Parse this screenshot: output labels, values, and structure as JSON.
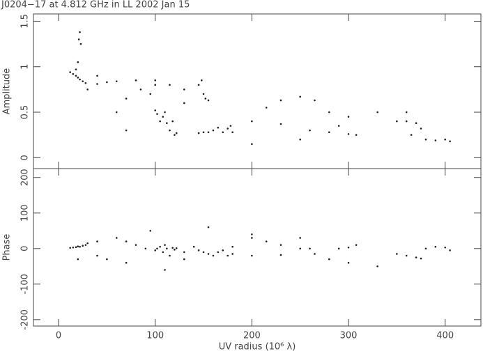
{
  "chart_data": [
    {
      "type": "scatter",
      "title": "J0204−17 at 4.812 GHz in LL  2002 Jan 15",
      "y_label": "Amplitude",
      "color": "#222222",
      "xlim": [
        -26,
        437
      ],
      "ylim": [
        -0.12,
        1.58
      ],
      "yticks": [
        0,
        0.5,
        1,
        1.5
      ],
      "x": [
        12,
        15,
        18,
        20,
        22,
        25,
        28,
        20,
        21,
        22,
        23,
        18,
        30,
        40,
        50,
        60,
        80,
        100,
        60,
        70,
        85,
        100,
        115,
        130,
        100,
        102,
        105,
        108,
        110,
        112,
        115,
        118,
        120,
        122,
        145,
        148,
        150,
        152,
        155,
        145,
        150,
        155,
        160,
        165,
        170,
        175,
        178,
        180,
        200,
        215,
        230,
        250,
        265,
        280,
        290,
        230,
        260,
        280,
        300,
        308,
        350,
        360,
        370,
        375,
        380,
        390,
        400,
        405,
        360,
        365,
        40,
        70,
        130,
        200,
        250,
        300,
        330,
        95
      ],
      "values": [
        0.94,
        0.92,
        0.9,
        0.88,
        0.86,
        0.84,
        0.82,
        1.05,
        1.3,
        1.38,
        1.25,
        0.97,
        0.75,
        0.81,
        0.83,
        0.84,
        0.85,
        0.85,
        0.5,
        0.65,
        0.75,
        0.8,
        0.8,
        0.75,
        0.52,
        0.48,
        0.4,
        0.45,
        0.5,
        0.38,
        0.3,
        0.4,
        0.25,
        0.27,
        0.8,
        0.85,
        0.7,
        0.65,
        0.63,
        0.27,
        0.28,
        0.28,
        0.3,
        0.33,
        0.28,
        0.32,
        0.35,
        0.28,
        0.4,
        0.55,
        0.63,
        0.67,
        0.63,
        0.5,
        0.35,
        0.37,
        0.3,
        0.28,
        0.26,
        0.25,
        0.4,
        0.4,
        0.38,
        0.32,
        0.2,
        0.19,
        0.2,
        0.18,
        0.5,
        0.25,
        0.9,
        0.3,
        0.6,
        0.15,
        0.2,
        0.45,
        0.5,
        0.7
      ]
    },
    {
      "type": "scatter",
      "y_label": "Phase",
      "x_label": "UV radius  (10⁶ λ)",
      "color": "#222222",
      "xlim": [
        -26,
        437
      ],
      "ylim": [
        -218,
        225
      ],
      "yticks": [
        -200,
        -100,
        0,
        100,
        200
      ],
      "xticks": [
        0,
        100,
        200,
        300,
        400
      ],
      "x": [
        12,
        15,
        18,
        20,
        22,
        25,
        28,
        20,
        30,
        40,
        50,
        60,
        70,
        80,
        90,
        100,
        102,
        105,
        108,
        110,
        112,
        115,
        118,
        120,
        122,
        130,
        140,
        145,
        150,
        155,
        160,
        165,
        170,
        175,
        180,
        180,
        200,
        215,
        230,
        250,
        265,
        280,
        200,
        230,
        260,
        290,
        300,
        308,
        350,
        360,
        370,
        375,
        380,
        390,
        400,
        405,
        40,
        70,
        130,
        200,
        250,
        300,
        330,
        95,
        110,
        155
      ],
      "values": [
        2,
        3,
        4,
        6,
        5,
        8,
        10,
        -30,
        15,
        -20,
        -30,
        30,
        20,
        10,
        0,
        -5,
        0,
        5,
        -10,
        10,
        0,
        -20,
        2,
        -3,
        1,
        -10,
        5,
        -5,
        -10,
        -15,
        -20,
        -10,
        -5,
        -20,
        -15,
        5,
        30,
        20,
        10,
        0,
        -15,
        -30,
        -20,
        -18,
        0,
        0,
        3,
        10,
        -15,
        -20,
        -25,
        -28,
        0,
        5,
        3,
        -5,
        20,
        -40,
        -30,
        40,
        30,
        -40,
        -50,
        50,
        -60,
        60
      ]
    }
  ]
}
